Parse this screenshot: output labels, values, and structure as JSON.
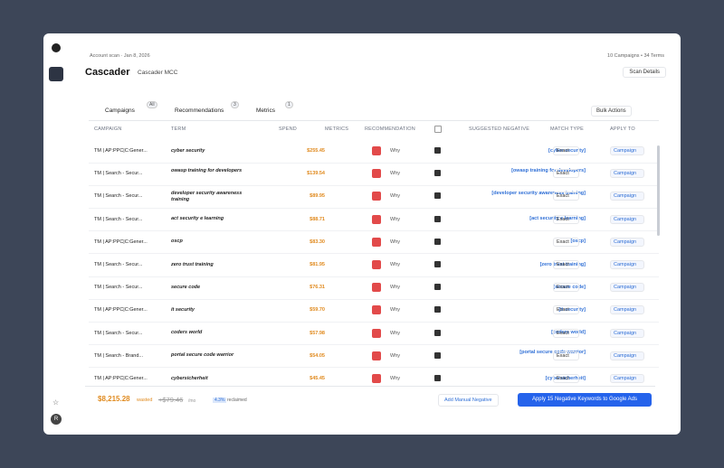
{
  "header": {
    "scan": "Account scan · Jan 8, 2026",
    "title": "Cascader",
    "account": "Cascader MCC",
    "summary": "10 Campaigns • 34 Terms",
    "details": "Scan Details"
  },
  "tabs": [
    {
      "label": "Campaigns",
      "badge": "All"
    },
    {
      "label": "Recommendations",
      "badge": "3"
    },
    {
      "label": "Metrics",
      "badge": "1"
    }
  ],
  "bulk": "Bulk Actions",
  "table": {
    "columns": [
      "CAMPAIGN",
      "TERM",
      "SPEND",
      "METRICS",
      "RECOMMENDATION",
      "SUGGESTED NEGATIVE",
      "MATCH TYPE",
      "APPLY TO"
    ],
    "rows": [
      {
        "campaign": "TM | AP:PPC|C:Gener...",
        "term": "cyber security",
        "spend": "$255.45",
        "recommendation": "Why",
        "negative": "[cyber security]",
        "match": "Exact",
        "apply": "Campaign"
      },
      {
        "campaign": "TM | Search - Secur...",
        "term": "owasp training for developers",
        "spend": "$139.54",
        "recommendation": "Why",
        "negative": "[owasp training for developers]",
        "match": "Exact",
        "apply": "Campaign"
      },
      {
        "campaign": "TM | Search - Secur...",
        "term": "developer security awareness training",
        "spend": "$89.95",
        "recommendation": "Why",
        "negative": "[developer security awareness training]",
        "match": "Exact",
        "apply": "Campaign"
      },
      {
        "campaign": "TM | Search - Secur...",
        "term": "act security e learning",
        "spend": "$88.71",
        "recommendation": "Why",
        "negative": "[act security e learning]",
        "match": "Exact",
        "apply": "Campaign"
      },
      {
        "campaign": "TM | AP:PPC|C:Gener...",
        "term": "oscp",
        "spend": "$83.30",
        "recommendation": "Why",
        "negative": "[oscp]",
        "match": "Exact",
        "apply": "Campaign"
      },
      {
        "campaign": "TM | Search - Secur...",
        "term": "zero trust training",
        "spend": "$81.95",
        "recommendation": "Why",
        "negative": "[zero trust training]",
        "match": "Exact",
        "apply": "Campaign"
      },
      {
        "campaign": "TM | Search - Secur...",
        "term": "secure code",
        "spend": "$76.31",
        "recommendation": "Why",
        "negative": "[secure code]",
        "match": "Exact",
        "apply": "Campaign"
      },
      {
        "campaign": "TM | AP:PPC|C:Gener...",
        "term": "it security",
        "spend": "$59.70",
        "recommendation": "Why",
        "negative": "[it security]",
        "match": "Exact",
        "apply": "Campaign"
      },
      {
        "campaign": "TM | Search - Secur...",
        "term": "coders world",
        "spend": "$57.98",
        "recommendation": "Why",
        "negative": "[coders world]",
        "match": "Exact",
        "apply": "Campaign"
      },
      {
        "campaign": "TM | Search - Brand...",
        "term": "portal secure code warrior",
        "spend": "$54.05",
        "recommendation": "Why",
        "negative": "[portal secure code warrior]",
        "match": "Exact",
        "apply": "Campaign"
      },
      {
        "campaign": "TM | AP:PPC|C:Gener...",
        "term": "cybersicherheit",
        "spend": "$45.45",
        "recommendation": "Why",
        "negative": "[cybersicherheit]",
        "match": "Exact",
        "apply": "Campaign"
      }
    ]
  },
  "footer": {
    "wasted": "$8,215.28",
    "wasted_label": "wasted",
    "saving": "+$79.46",
    "saving_unit": "/mo",
    "reclaimed": "4.3%",
    "reclaimed_label": "reclaimed",
    "add": "Add Manual Negative",
    "apply": "Apply 15 Negative Keywords to Google Ads"
  }
}
